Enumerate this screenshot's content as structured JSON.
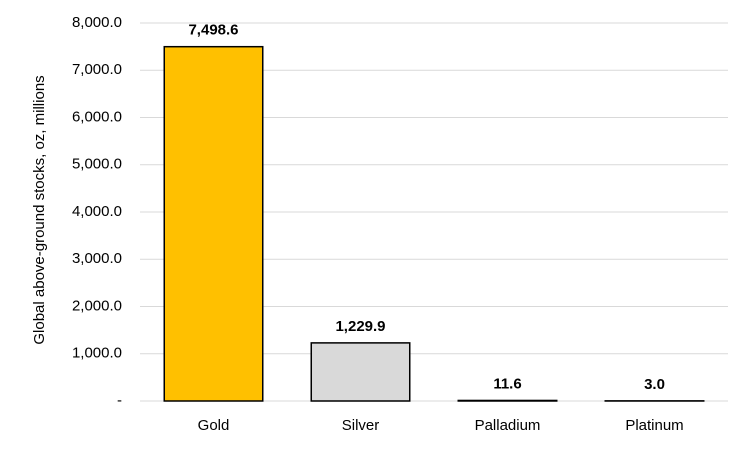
{
  "chart_data": {
    "type": "bar",
    "y_axis_label": "Global above-ground stocks, oz, millions",
    "categories": [
      "Gold",
      "Silver",
      "Palladium",
      "Platinum"
    ],
    "values": [
      7498.6,
      1229.9,
      11.6,
      3.0
    ],
    "value_labels": [
      "7,498.6",
      "1,229.9",
      "11.6",
      "3.0"
    ],
    "colors": [
      "#ffc000",
      "#d9d9d9",
      "#d9d9d9",
      "#d9d9d9"
    ],
    "ylim": [
      0,
      8000
    ],
    "yticks": [
      {
        "value": 0,
        "label": "-"
      },
      {
        "value": 1000,
        "label": "1,000.0"
      },
      {
        "value": 2000,
        "label": "2,000.0"
      },
      {
        "value": 3000,
        "label": "3,000.0"
      },
      {
        "value": 4000,
        "label": "4,000.0"
      },
      {
        "value": 5000,
        "label": "5,000.0"
      },
      {
        "value": 6000,
        "label": "6,000.0"
      },
      {
        "value": 7000,
        "label": "7,000.0"
      },
      {
        "value": 8000,
        "label": "8,000.0"
      }
    ],
    "grid": true
  }
}
